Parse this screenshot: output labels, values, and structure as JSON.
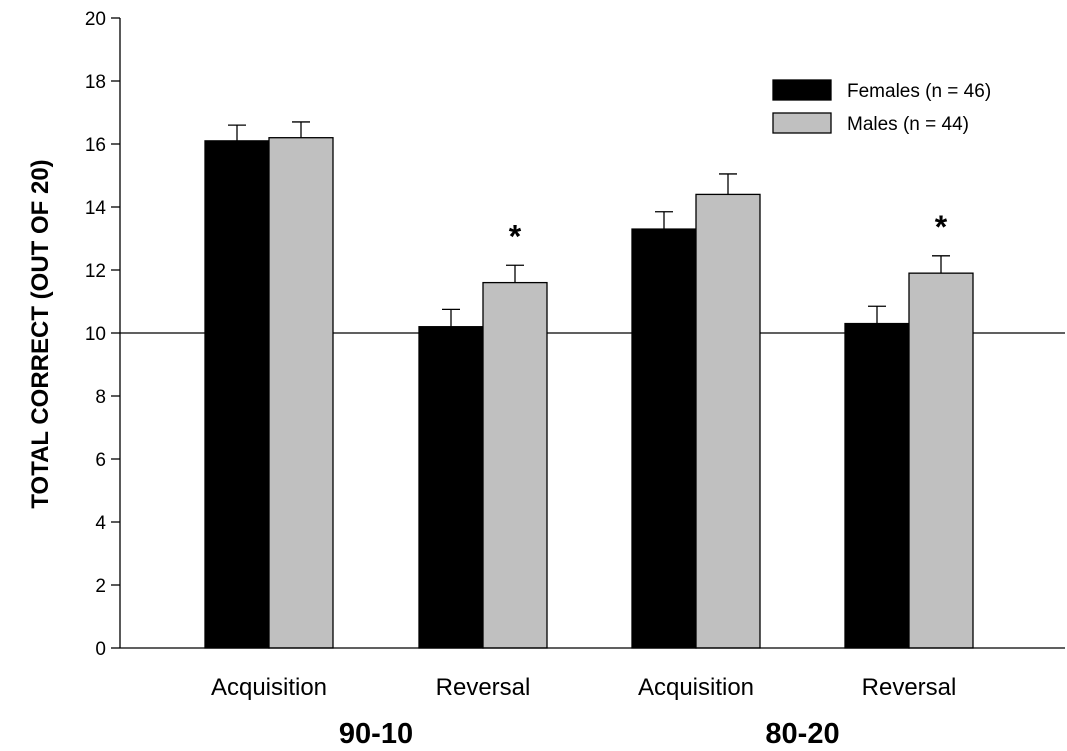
{
  "chart_data": {
    "type": "bar",
    "title": "",
    "ylabel": "TOTAL CORRECT (OUT OF 20)",
    "xlabel": "",
    "ylim": [
      0,
      20
    ],
    "yticks": [
      0,
      2,
      4,
      6,
      8,
      10,
      12,
      14,
      16,
      18,
      20
    ],
    "categories": [
      "Acquisition",
      "Reversal",
      "Acquisition",
      "Reversal"
    ],
    "groups": [
      {
        "label": "90-10",
        "categories": [
          0,
          1
        ]
      },
      {
        "label": "80-20",
        "categories": [
          2,
          3
        ]
      }
    ],
    "series": [
      {
        "name": "Females (n = 46)",
        "color": "#000000",
        "values": [
          16.1,
          10.2,
          13.3,
          10.3
        ],
        "errors": [
          0.5,
          0.55,
          0.55,
          0.55
        ]
      },
      {
        "name": "Males (n = 44)",
        "color": "#c0c0c0",
        "values": [
          16.2,
          11.6,
          14.4,
          11.9
        ],
        "errors": [
          0.5,
          0.55,
          0.65,
          0.55
        ]
      }
    ],
    "reference_line": 10,
    "annotations": [
      {
        "text": "*",
        "category": 1,
        "series": 1
      },
      {
        "text": "*",
        "category": 3,
        "series": 1
      }
    ],
    "legend_position": "top-right",
    "grid": false
  }
}
